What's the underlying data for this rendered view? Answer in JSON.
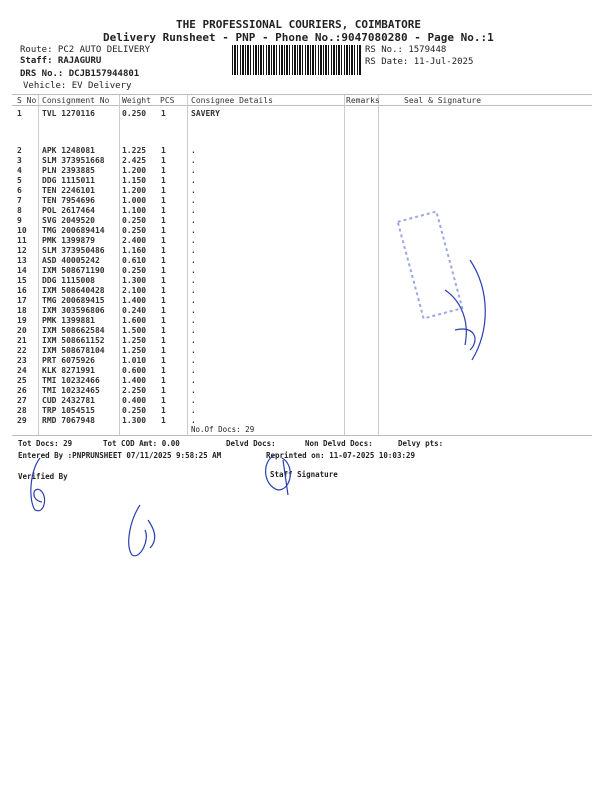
{
  "header": {
    "company": "THE PROFESSIONAL COURIERS, COIMBATORE",
    "subtitle": "Delivery Runsheet - PNP - Phone No.:9047080280 - Page No.:1",
    "route": "Route: PC2 AUTO DELIVERY",
    "staff": "Staff: RAJAGURU",
    "drs_no": "DRS No.: DCJB157944801",
    "vehicle": "Vehicle: EV Delivery",
    "rs_no": "RS No.: 1579448",
    "rs_date": "RS Date: 11-Jul-2025"
  },
  "table": {
    "columns": [
      "S No",
      "Consignment No",
      "Weight",
      "PCS",
      "Consignee Details",
      "Remarks",
      "Seal & Signature"
    ],
    "rows": [
      {
        "sno": "1",
        "cn": "TVL 1270116",
        "wt": "0.250",
        "pcs": "1",
        "details": "SAVERY"
      },
      {
        "sno": "2",
        "cn": "APK 1248081",
        "wt": "1.225",
        "pcs": "1",
        "details": "."
      },
      {
        "sno": "3",
        "cn": "SLM 373951668",
        "wt": "2.425",
        "pcs": "1",
        "details": "."
      },
      {
        "sno": "4",
        "cn": "PLN 2393885",
        "wt": "1.200",
        "pcs": "1",
        "details": "."
      },
      {
        "sno": "5",
        "cn": "DDG 1115011",
        "wt": "1.150",
        "pcs": "1",
        "details": "."
      },
      {
        "sno": "6",
        "cn": "TEN 2246101",
        "wt": "1.200",
        "pcs": "1",
        "details": "."
      },
      {
        "sno": "7",
        "cn": "TEN 7954696",
        "wt": "1.000",
        "pcs": "1",
        "details": "."
      },
      {
        "sno": "8",
        "cn": "POL 2617464",
        "wt": "1.100",
        "pcs": "1",
        "details": "."
      },
      {
        "sno": "9",
        "cn": "SVG 2049520",
        "wt": "0.250",
        "pcs": "1",
        "details": "."
      },
      {
        "sno": "10",
        "cn": "TMG 200689414",
        "wt": "0.250",
        "pcs": "1",
        "details": "."
      },
      {
        "sno": "11",
        "cn": "PMK 1399879",
        "wt": "2.400",
        "pcs": "1",
        "details": "."
      },
      {
        "sno": "12",
        "cn": "SLM 373950486",
        "wt": "1.160",
        "pcs": "1",
        "details": "."
      },
      {
        "sno": "13",
        "cn": "ASD 40005242",
        "wt": "0.610",
        "pcs": "1",
        "details": "."
      },
      {
        "sno": "14",
        "cn": "IXM 508671190",
        "wt": "0.250",
        "pcs": "1",
        "details": "."
      },
      {
        "sno": "15",
        "cn": "DDG 1115008",
        "wt": "1.300",
        "pcs": "1",
        "details": "."
      },
      {
        "sno": "16",
        "cn": "IXM 508640428",
        "wt": "2.100",
        "pcs": "1",
        "details": "."
      },
      {
        "sno": "17",
        "cn": "TMG 200689415",
        "wt": "1.400",
        "pcs": "1",
        "details": "."
      },
      {
        "sno": "18",
        "cn": "IXM 303596806",
        "wt": "0.240",
        "pcs": "1",
        "details": "."
      },
      {
        "sno": "19",
        "cn": "PMK 1399881",
        "wt": "1.600",
        "pcs": "1",
        "details": "."
      },
      {
        "sno": "20",
        "cn": "IXM 508662584",
        "wt": "1.500",
        "pcs": "1",
        "details": "."
      },
      {
        "sno": "21",
        "cn": "IXM 508661152",
        "wt": "1.250",
        "pcs": "1",
        "details": "."
      },
      {
        "sno": "22",
        "cn": "IXM 508678104",
        "wt": "1.250",
        "pcs": "1",
        "details": "."
      },
      {
        "sno": "23",
        "cn": "PRT 6075926",
        "wt": "1.010",
        "pcs": "1",
        "details": "."
      },
      {
        "sno": "24",
        "cn": "KLK 8271991",
        "wt": "0.600",
        "pcs": "1",
        "details": "."
      },
      {
        "sno": "25",
        "cn": "TMI 10232466",
        "wt": "1.400",
        "pcs": "1",
        "details": "."
      },
      {
        "sno": "26",
        "cn": "TMI 10232465",
        "wt": "2.250",
        "pcs": "1",
        "details": "."
      },
      {
        "sno": "27",
        "cn": "CUD 2432781",
        "wt": "0.400",
        "pcs": "1",
        "details": "."
      },
      {
        "sno": "28",
        "cn": "TRP 1054515",
        "wt": "0.250",
        "pcs": "1",
        "details": "."
      },
      {
        "sno": "29",
        "cn": "RMD 7067948",
        "wt": "1.300",
        "pcs": "1",
        "details": "."
      }
    ],
    "no_of_docs": "No.Of Docs: 29"
  },
  "footer": {
    "tot_docs": "Tot Docs:  29",
    "tot_cod": "Tot COD Amt:    0.00",
    "delvd_docs": "Delvd Docs:",
    "non_delvd_docs": "Non Delvd Docs:",
    "delvy_pts": "Delvy pts:",
    "entered_by": "Entered By :PNPRUNSHEET 07/11/2025 9:58:25 AM",
    "reprinted_on": "Reprinted on: 11-07-2025 10:03:29",
    "verified_by": "Verified By",
    "staff_signature": "Staff Signature"
  },
  "colors": {
    "ink": "#222222",
    "pen": "#2a3fb0",
    "stamp": "#4a5fd0"
  }
}
